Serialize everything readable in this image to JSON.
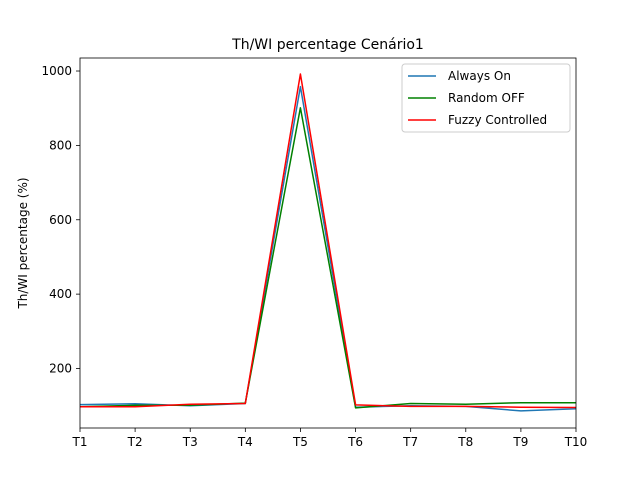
{
  "chart_data": {
    "type": "line",
    "title": "Th/WI percentage Cenário1",
    "xlabel": "",
    "ylabel": "Th/WI percentage (%)",
    "categories": [
      "T1",
      "T2",
      "T3",
      "T4",
      "T5",
      "T6",
      "T7",
      "T8",
      "T9",
      "T10"
    ],
    "ylim": [
      40,
      1035
    ],
    "yticks": [
      200,
      400,
      600,
      800,
      1000
    ],
    "grid": false,
    "legend_position": "top-right",
    "series": [
      {
        "name": "Always On",
        "color": "#1f77b4",
        "values": [
          103,
          105,
          100,
          106,
          958,
          96,
          100,
          98,
          86,
          92
        ]
      },
      {
        "name": "Random OFF",
        "color": "#008000",
        "values": [
          97,
          101,
          101,
          107,
          901,
          94,
          106,
          104,
          108,
          108
        ]
      },
      {
        "name": "Fuzzy Controlled",
        "color": "#ff0000",
        "values": [
          97,
          97,
          104,
          106,
          992,
          102,
          98,
          98,
          96,
          95
        ]
      }
    ]
  }
}
